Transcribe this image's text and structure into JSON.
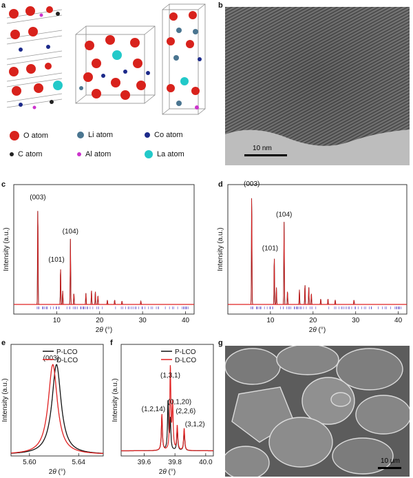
{
  "panels": {
    "a": "a",
    "b": "b",
    "c": "c",
    "d": "d",
    "e": "e",
    "f": "f",
    "g": "g"
  },
  "atom_legend": [
    {
      "label": "O atom",
      "color": "#d8221c",
      "size": 14
    },
    {
      "label": "Li atom",
      "color": "#4a7590",
      "size": 10
    },
    {
      "label": "Co atom",
      "color": "#1c2a8a",
      "size": 8
    },
    {
      "label": "C atom",
      "color": "#222222",
      "size": 6
    },
    {
      "label": "Al atom",
      "color": "#cc33cc",
      "size": 6
    },
    {
      "label": "La atom",
      "color": "#22c9c9",
      "size": 12
    }
  ],
  "tem": {
    "scale_label": "10 nm"
  },
  "sem": {
    "scale_label": "10 μm"
  },
  "chart_data": [
    {
      "panel": "c",
      "type": "line",
      "xlabel": "2θ (°)",
      "ylabel": "Intensity (a.u.)",
      "xlim": [
        0,
        42
      ],
      "xticks": [
        10,
        20,
        30,
        40
      ],
      "peaks": [
        {
          "x": 5.6,
          "y": 0.88,
          "label": "(003)"
        },
        {
          "x": 10.9,
          "y": 0.33,
          "label": "(101)"
        },
        {
          "x": 11.4,
          "y": 0.12
        },
        {
          "x": 13.2,
          "y": 0.58,
          "label": "(104)"
        },
        {
          "x": 14.0,
          "y": 0.1
        },
        {
          "x": 16.8,
          "y": 0.1
        },
        {
          "x": 18.1,
          "y": 0.13
        },
        {
          "x": 19.0,
          "y": 0.12
        },
        {
          "x": 19.6,
          "y": 0.08
        },
        {
          "x": 21.8,
          "y": 0.04
        },
        {
          "x": 23.5,
          "y": 0.04
        },
        {
          "x": 25.2,
          "y": 0.03
        },
        {
          "x": 29.6,
          "y": 0.03
        }
      ]
    },
    {
      "panel": "d",
      "type": "line",
      "xlabel": "2θ (°)",
      "ylabel": "Intensity (a.u.)",
      "xlim": [
        0,
        42
      ],
      "xticks": [
        10,
        20,
        30,
        40
      ],
      "peaks": [
        {
          "x": 5.6,
          "y": 1.0,
          "label": "(003)"
        },
        {
          "x": 10.9,
          "y": 0.43,
          "label": "(101)"
        },
        {
          "x": 11.4,
          "y": 0.15
        },
        {
          "x": 13.2,
          "y": 0.73,
          "label": "(104)"
        },
        {
          "x": 14.0,
          "y": 0.12
        },
        {
          "x": 16.8,
          "y": 0.13
        },
        {
          "x": 18.1,
          "y": 0.18
        },
        {
          "x": 19.0,
          "y": 0.16
        },
        {
          "x": 19.6,
          "y": 0.1
        },
        {
          "x": 21.8,
          "y": 0.05
        },
        {
          "x": 23.5,
          "y": 0.05
        },
        {
          "x": 25.2,
          "y": 0.04
        },
        {
          "x": 29.6,
          "y": 0.04
        }
      ]
    },
    {
      "panel": "e",
      "type": "line",
      "xlabel": "2θ (°)",
      "ylabel": "Intensity (a.u.)",
      "xlim": [
        5.585,
        5.66
      ],
      "xticks": [
        5.6,
        5.64
      ],
      "annotations": [
        {
          "x": 5.621,
          "y": 0.9,
          "label": "(003)"
        }
      ],
      "series": [
        {
          "name": "P-LCO",
          "color": "#111111",
          "center": 5.622,
          "width": 0.0045,
          "height": 0.86
        },
        {
          "name": "D-LCO",
          "color": "#e02020",
          "center": 5.619,
          "width": 0.0045,
          "height": 0.86
        }
      ]
    },
    {
      "panel": "f",
      "type": "line",
      "xlabel": "2θ (°)",
      "ylabel": "Intensity (a.u.)",
      "xlim": [
        39.45,
        40.05
      ],
      "xticks": [
        39.6,
        39.8,
        40.0
      ],
      "annotations": [
        {
          "x": 39.66,
          "y": 0.4,
          "label": "(1,2,14)"
        },
        {
          "x": 39.77,
          "y": 0.73,
          "label": "(1,3,1)"
        },
        {
          "x": 39.83,
          "y": 0.47,
          "label": "(0,1,20)"
        },
        {
          "x": 39.87,
          "y": 0.38,
          "label": "(2,2,6)"
        },
        {
          "x": 39.93,
          "y": 0.25,
          "label": "(3,1,2)"
        }
      ],
      "series": [
        {
          "name": "P-LCO",
          "color": "#111111",
          "peaks": [
            [
              39.715,
              0.34
            ],
            [
              39.755,
              0.48
            ],
            [
              39.77,
              0.3
            ],
            [
              39.815,
              0.22
            ],
            [
              39.86,
              0.2
            ]
          ]
        },
        {
          "name": "D-LCO",
          "color": "#e02020",
          "peaks": [
            [
              39.715,
              0.36
            ],
            [
              39.77,
              0.82
            ],
            [
              39.785,
              0.45
            ],
            [
              39.815,
              0.24
            ],
            [
              39.86,
              0.22
            ]
          ]
        }
      ]
    }
  ]
}
